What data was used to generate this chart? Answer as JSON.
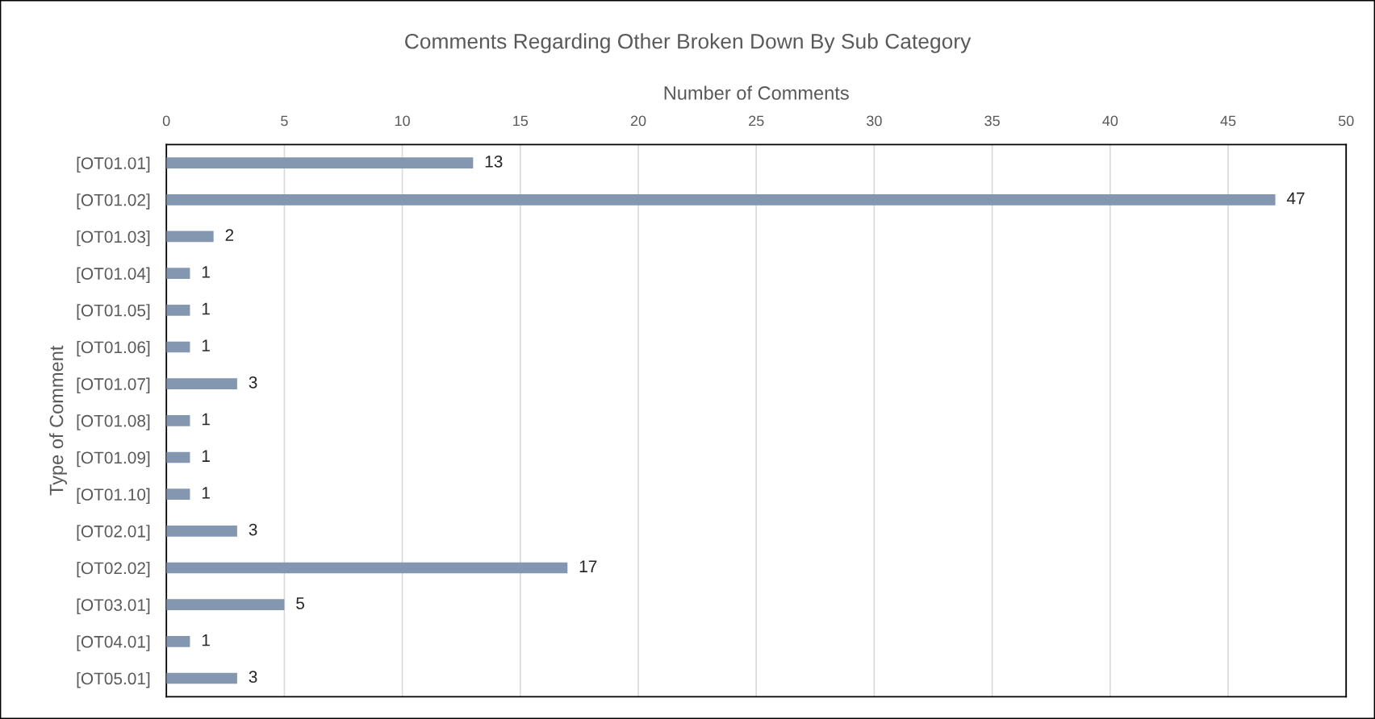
{
  "chart_data": {
    "type": "bar",
    "orientation": "horizontal",
    "title": "Comments Regarding Other Broken Down By Sub Category",
    "xlabel": "Number of Comments",
    "ylabel": "Type of Comment",
    "categories": [
      "[OT01.01]",
      "[OT01.02]",
      "[OT01.03]",
      "[OT01.04]",
      "[OT01.05]",
      "[OT01.06]",
      "[OT01.07]",
      "[OT01.08]",
      "[OT01.09]",
      "[OT01.10]",
      "[OT02.01]",
      "[OT02.02]",
      "[OT03.01]",
      "[OT04.01]",
      "[OT05.01]"
    ],
    "values": [
      13,
      47,
      2,
      1,
      1,
      1,
      3,
      1,
      1,
      1,
      3,
      17,
      5,
      1,
      3
    ],
    "color": "#8497b0",
    "xlim": [
      0,
      50
    ],
    "xticks": [
      0,
      5,
      10,
      15,
      20,
      25,
      30,
      35,
      40,
      45,
      50
    ],
    "grid": "x",
    "data_labels": true
  }
}
